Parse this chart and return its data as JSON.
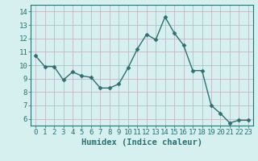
{
  "x": [
    0,
    1,
    2,
    3,
    4,
    5,
    6,
    7,
    8,
    9,
    10,
    11,
    12,
    13,
    14,
    15,
    16,
    17,
    18,
    19,
    20,
    21,
    22,
    23
  ],
  "y": [
    10.7,
    9.9,
    9.9,
    8.9,
    9.5,
    9.2,
    9.1,
    8.3,
    8.3,
    8.6,
    9.8,
    11.2,
    12.3,
    11.9,
    13.6,
    12.4,
    11.5,
    9.6,
    9.6,
    7.0,
    6.4,
    5.7,
    5.9,
    5.9
  ],
  "line_color": "#2d7070",
  "marker": "D",
  "marker_size": 2.5,
  "bg_color": "#d6f0f0",
  "grid_color": "#c0b8c8",
  "xlabel": "Humidex (Indice chaleur)",
  "xlim": [
    -0.5,
    23.5
  ],
  "ylim": [
    5.5,
    14.5
  ],
  "yticks": [
    6,
    7,
    8,
    9,
    10,
    11,
    12,
    13,
    14
  ],
  "xticks": [
    0,
    1,
    2,
    3,
    4,
    5,
    6,
    7,
    8,
    9,
    10,
    11,
    12,
    13,
    14,
    15,
    16,
    17,
    18,
    19,
    20,
    21,
    22,
    23
  ],
  "xlabel_fontsize": 7.5,
  "tick_fontsize": 6.5,
  "line_width": 1.0
}
